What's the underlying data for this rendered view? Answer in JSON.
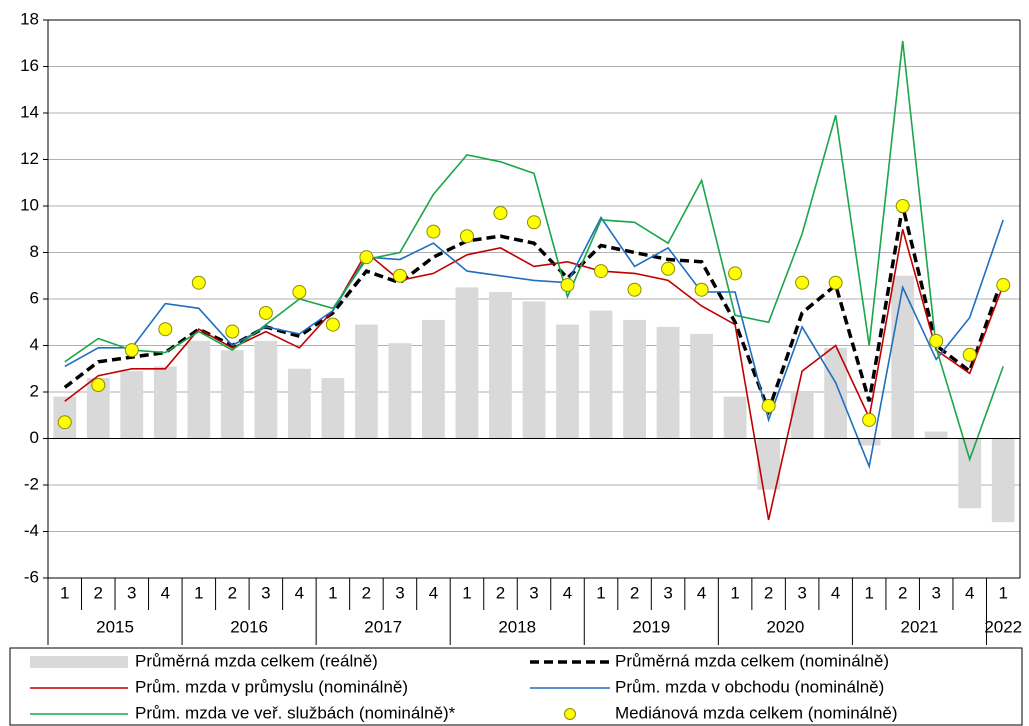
{
  "chart_data": {
    "type": "combo",
    "categories": [
      "1",
      "2",
      "3",
      "4",
      "1",
      "2",
      "3",
      "4",
      "1",
      "2",
      "3",
      "4",
      "1",
      "2",
      "3",
      "4",
      "1",
      "2",
      "3",
      "4",
      "1",
      "2",
      "3",
      "4",
      "1",
      "2",
      "3",
      "4",
      "1"
    ],
    "year_labels": [
      "2015",
      "2016",
      "2017",
      "2018",
      "2019",
      "2020",
      "2021",
      "2022"
    ],
    "ylim": [
      -6,
      18
    ],
    "yticks": [
      -6,
      -4,
      -2,
      0,
      2,
      4,
      6,
      8,
      10,
      12,
      14,
      16,
      18
    ],
    "grid": true,
    "legend": "bottom",
    "series": [
      {
        "name": "Průměrná mzda celkem (reálně)",
        "type": "bar",
        "color": "#d9d9d9",
        "values": [
          1.8,
          2.6,
          2.9,
          3.1,
          4.2,
          3.8,
          4.2,
          3.0,
          2.6,
          4.9,
          4.1,
          5.1,
          6.5,
          6.3,
          5.9,
          4.9,
          5.5,
          5.1,
          4.8,
          4.5,
          1.8,
          -2.2,
          2.0,
          3.9,
          -0.3,
          7.0,
          0.3,
          -3.0,
          -3.6
        ]
      },
      {
        "name": "Průměrná mzda celkem (nominálně)",
        "type": "line",
        "dashed": true,
        "color": "#000000",
        "values": [
          2.2,
          3.3,
          3.5,
          3.7,
          4.7,
          4.0,
          4.8,
          4.4,
          5.4,
          7.2,
          6.7,
          7.8,
          8.5,
          8.7,
          8.4,
          6.9,
          8.3,
          8.0,
          7.7,
          7.6,
          5.0,
          1.2,
          5.4,
          6.6,
          1.6,
          10.0,
          4.0,
          2.9,
          7.0
        ]
      },
      {
        "name": "Prům. mzda v průmyslu (nominálně)",
        "type": "line",
        "color": "#c00000",
        "values": [
          1.6,
          2.7,
          3.0,
          3.0,
          4.7,
          3.9,
          4.6,
          3.9,
          5.5,
          8.0,
          6.8,
          7.1,
          7.9,
          8.2,
          7.4,
          7.6,
          7.2,
          7.1,
          6.8,
          5.7,
          4.9,
          -3.5,
          2.9,
          4.0,
          0.9,
          9.0,
          3.8,
          2.8,
          6.6
        ]
      },
      {
        "name": "Prům. mzda v obchodu (nominálně)",
        "type": "line",
        "color": "#1f6fc0",
        "values": [
          3.1,
          3.9,
          3.9,
          5.8,
          5.6,
          4.0,
          4.8,
          4.5,
          5.5,
          7.8,
          7.7,
          8.4,
          7.2,
          7.0,
          6.8,
          6.7,
          9.5,
          7.4,
          8.2,
          6.3,
          6.3,
          0.8,
          4.8,
          2.4,
          -1.2,
          6.5,
          3.4,
          5.2,
          9.4
        ]
      },
      {
        "name": "Prům. mzda ve veř. službách (nominálně)*",
        "type": "line",
        "color": "#1aa64a",
        "values": [
          3.3,
          4.3,
          3.8,
          3.7,
          4.6,
          3.8,
          4.9,
          6.0,
          5.6,
          7.7,
          8.0,
          10.5,
          12.2,
          11.9,
          11.4,
          6.1,
          9.4,
          9.3,
          8.4,
          11.1,
          5.3,
          5.0,
          8.8,
          13.9,
          4.0,
          17.1,
          3.9,
          -0.9,
          3.1
        ]
      },
      {
        "name": "Mediánová mzda celkem (nominálně)",
        "type": "scatter",
        "color": "#ffff00",
        "values": [
          0.7,
          2.3,
          3.8,
          4.7,
          6.7,
          4.6,
          5.4,
          6.3,
          4.9,
          7.8,
          7.0,
          8.9,
          8.7,
          9.7,
          9.3,
          6.6,
          7.2,
          6.4,
          7.3,
          6.4,
          7.1,
          1.4,
          6.7,
          6.7,
          0.8,
          10.0,
          4.2,
          3.6,
          6.6
        ]
      }
    ]
  }
}
